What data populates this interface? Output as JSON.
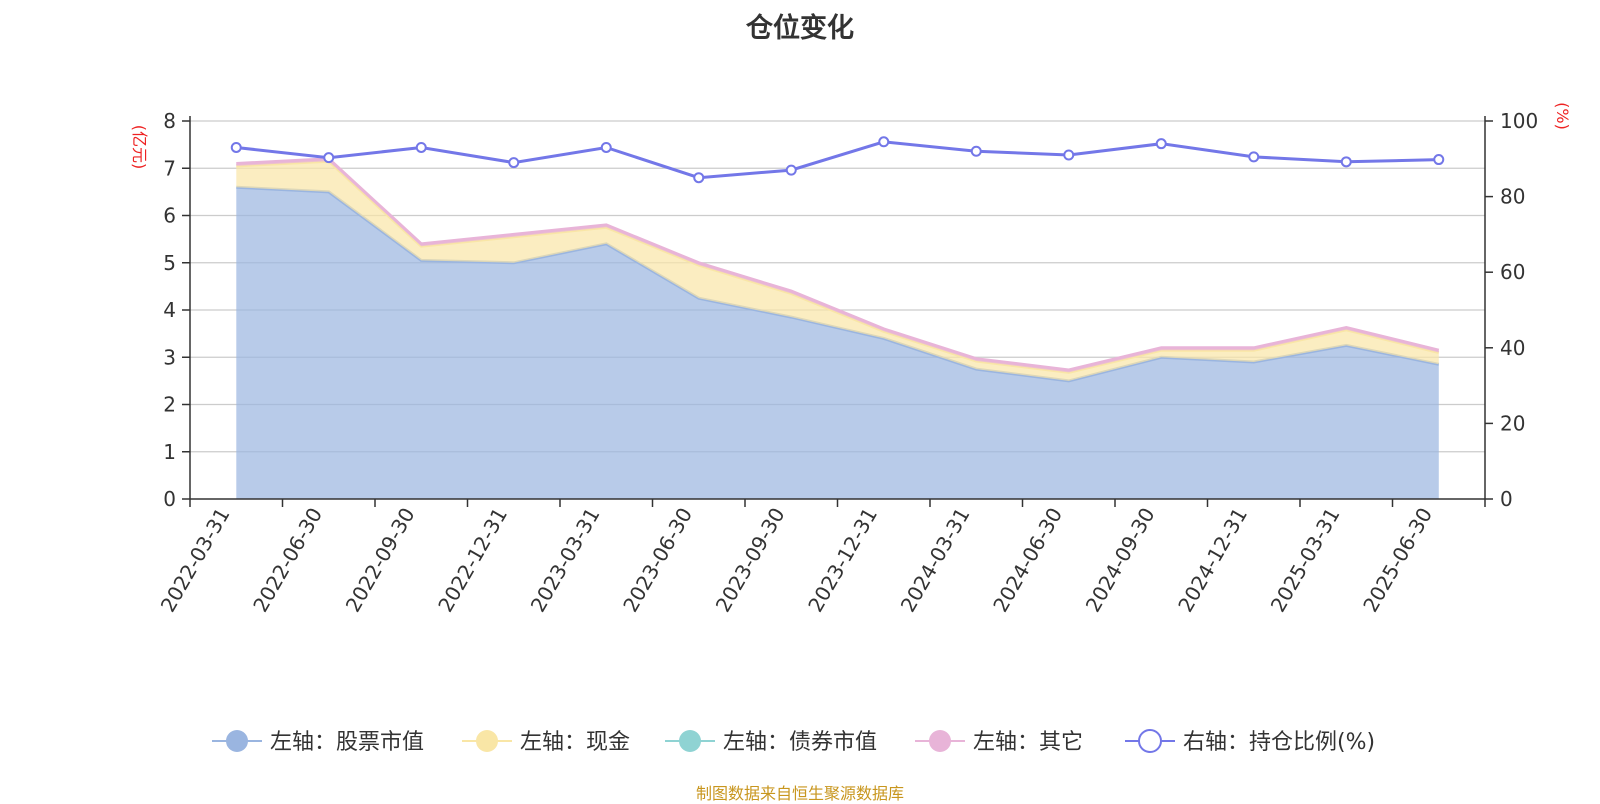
{
  "title": "仓位变化",
  "source": "制图数据来自恒生聚源数据库",
  "chart_data": {
    "type": "area",
    "title": "仓位变化",
    "categories": [
      "2022-03-31",
      "2022-06-30",
      "2022-09-30",
      "2022-12-31",
      "2023-03-31",
      "2023-06-30",
      "2023-09-30",
      "2023-12-31",
      "2024-03-31",
      "2024-06-30",
      "2024-09-30",
      "2024-12-31",
      "2025-03-31",
      "2025-06-30"
    ],
    "left_axis": {
      "unit": "(亿元)",
      "ylim": [
        0,
        8
      ],
      "ticks": [
        0,
        1,
        2,
        3,
        4,
        5,
        6,
        7,
        8
      ]
    },
    "right_axis": {
      "unit": "(%)",
      "ylim": [
        0,
        100
      ],
      "ticks": [
        0,
        20,
        40,
        60,
        80,
        100
      ]
    },
    "series": [
      {
        "name": "左轴：股票市值",
        "axis": "left",
        "stack": true,
        "color": "#9ab5e0",
        "values": [
          6.6,
          6.5,
          5.05,
          5.0,
          5.4,
          4.25,
          3.85,
          3.4,
          2.75,
          2.5,
          3.0,
          2.9,
          3.25,
          2.85
        ]
      },
      {
        "name": "左轴：现金",
        "axis": "left",
        "stack": true,
        "color": "#f9e6a6",
        "values": [
          0.45,
          0.65,
          0.3,
          0.55,
          0.35,
          0.7,
          0.5,
          0.15,
          0.17,
          0.18,
          0.15,
          0.25,
          0.33,
          0.25
        ]
      },
      {
        "name": "左轴：债券市值",
        "axis": "left",
        "stack": true,
        "color": "#8fd3d3",
        "values": [
          0,
          0,
          0,
          0,
          0,
          0,
          0,
          0,
          0,
          0,
          0,
          0,
          0,
          0
        ]
      },
      {
        "name": "左轴：其它",
        "axis": "left",
        "stack": true,
        "color": "#e8b4d8",
        "values": [
          0.05,
          0.05,
          0.05,
          0.05,
          0.05,
          0.05,
          0.05,
          0.05,
          0.05,
          0.05,
          0.05,
          0.05,
          0.05,
          0.05
        ]
      },
      {
        "name": "右轴：持仓比例(%)",
        "axis": "right",
        "stack": false,
        "color": "#7377e8",
        "values": [
          93,
          90.3,
          93,
          89,
          93,
          85,
          87,
          94.5,
          92,
          91,
          94,
          90.5,
          89.2,
          89.8
        ]
      }
    ],
    "grid": true,
    "legend_position": "bottom"
  }
}
